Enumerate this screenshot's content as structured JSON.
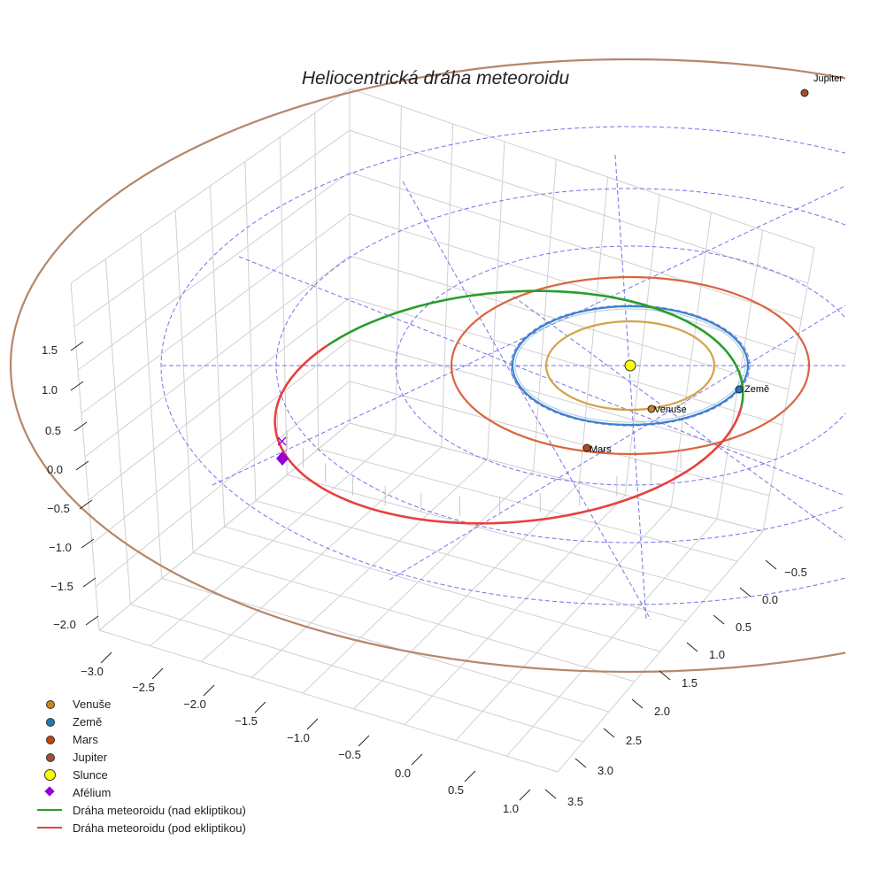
{
  "chart_data": {
    "type": "3d-line",
    "title": "Heliocentrická dráha meteoroidu",
    "axes": {
      "x_ticks": [
        "−3.0",
        "−2.5",
        "−2.0",
        "−1.5",
        "−1.0",
        "−0.5",
        "0.0",
        "0.5",
        "1.0"
      ],
      "y_ticks": [
        "−0.5",
        "0.0",
        "0.5",
        "1.0",
        "1.5",
        "2.0",
        "2.5",
        "3.0",
        "3.5"
      ],
      "z_ticks": [
        "1.5",
        "1.0",
        "0.5",
        "0.0",
        "−0.5",
        "−1.0",
        "−1.5",
        "−2.0"
      ],
      "grid": true
    },
    "planets": [
      {
        "name": "Venuše",
        "label": "Venuše",
        "a_au": 0.72,
        "color": "#c9831f",
        "orbit_color": "#d6a24a"
      },
      {
        "name": "Země",
        "label": "Země",
        "a_au": 1.0,
        "color": "#1f77b4",
        "orbit_color": "#3b82c8"
      },
      {
        "name": "Mars",
        "label": "Mars",
        "a_au": 1.52,
        "color": "#c1440e",
        "orbit_color": "#d9643e"
      },
      {
        "name": "Jupiter",
        "label": "Jupiter",
        "a_au": 5.2,
        "color": "#a0522d",
        "orbit_color": "#b5876a"
      }
    ],
    "sun": {
      "name": "Slunce",
      "color": "#ffff00"
    },
    "aphelion": {
      "name": "Afélium",
      "color": "#9400d3"
    },
    "series": [
      {
        "name": "Dráha meteoroidu (nad ekliptikou)",
        "color": "#2a9d2a"
      },
      {
        "name": "Dráha meteoroidu (pod ekliptikou)",
        "color": "#e8403d"
      }
    ],
    "legend_position": "bottom-left"
  },
  "legend": [
    {
      "label": "Venuše",
      "kind": "dot",
      "color": "#c9831f"
    },
    {
      "label": "Země",
      "kind": "dot",
      "color": "#1f77b4"
    },
    {
      "label": "Mars",
      "kind": "dot",
      "color": "#c1440e"
    },
    {
      "label": "Jupiter",
      "kind": "dot",
      "color": "#a0522d"
    },
    {
      "label": "Slunce",
      "kind": "sun",
      "color": "#ffff00"
    },
    {
      "label": "Afélium",
      "kind": "diamond",
      "color": "#9400d3"
    },
    {
      "label": "Dráha meteoroidu (nad ekliptikou)",
      "kind": "line",
      "color": "#2a9d2a"
    },
    {
      "label": "Dráha meteoroidu (pod ekliptikou)",
      "kind": "line",
      "color": "#e8403d"
    }
  ]
}
